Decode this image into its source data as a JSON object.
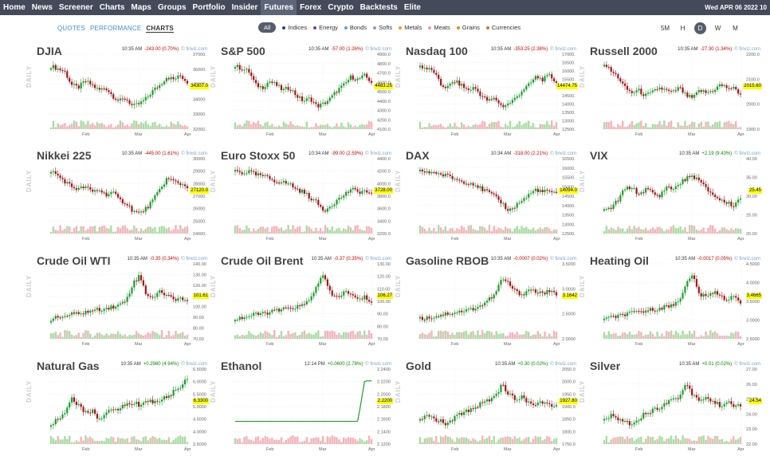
{
  "nav": {
    "items": [
      "Home",
      "News",
      "Screener",
      "Charts",
      "Maps",
      "Groups",
      "Portfolio",
      "Insider",
      "Futures",
      "Forex",
      "Crypto",
      "Backtests",
      "Elite"
    ],
    "active": "Futures",
    "date": "Wed APR 06 2022 10"
  },
  "tabs": {
    "quotes": "QUOTES",
    "performance": "PERFORMANCE",
    "charts": "CHARTS"
  },
  "filters": [
    {
      "label": "All"
    },
    {
      "label": "Indices",
      "color": "#2a3d9a"
    },
    {
      "label": "Energy",
      "color": "#6a3fb3"
    },
    {
      "label": "Bonds",
      "color": "#59a5dc"
    },
    {
      "label": "Softs",
      "color": "#8a9db8"
    },
    {
      "label": "Metals",
      "color": "#e0a81c"
    },
    {
      "label": "Meats",
      "color": "#e59bbd"
    },
    {
      "label": "Grains",
      "color": "#c8962d"
    },
    {
      "label": "Currencies",
      "color": "#c67f2b"
    }
  ],
  "timeframes": [
    "5M",
    "H",
    "D",
    "W",
    "M"
  ],
  "colors": {
    "up": "#1a9e2a",
    "down": "#a01818",
    "vol_up": "#a9dca4",
    "vol_down": "#f3b4b9",
    "price_tag": "#ffff00"
  },
  "charts": [
    {
      "name": "DJIA",
      "time": "10:35 AM",
      "change": "-243.00 (0.70%)",
      "dir": "neg",
      "source": "© finviz.com",
      "price": "34307.0",
      "yticks": [
        "37000.0",
        "36000.0",
        "35000.0",
        "34000.0",
        "33000.0",
        "32000.0"
      ],
      "months": [
        "Feb",
        "Mar",
        "Apr"
      ],
      "shape": "djia"
    },
    {
      "name": "S&P 500",
      "time": "10:35 AM",
      "change": "-57.00 (1.26%)",
      "dir": "neg",
      "source": "© finviz.com",
      "price": "4483.25",
      "yticks": [
        "4900.00",
        "4800.00",
        "4700.00",
        "4600.00",
        "4500.00",
        "4400.00",
        "4300.00",
        "4200.00",
        "4100.00"
      ],
      "months": [
        "Feb",
        "Mar",
        "Apr"
      ],
      "shape": "djia"
    },
    {
      "name": "Nasdaq 100",
      "time": "10:35 AM",
      "change": "-353.25 (2.38%)",
      "dir": "neg",
      "source": "© finviz.com",
      "price": "14474.75",
      "yticks": [
        "17000.0",
        "16500.0",
        "16000.0",
        "15500.0",
        "15000.0",
        "14500.0",
        "14000.0",
        "13500.0",
        "13000.0",
        "12500.0"
      ],
      "months": [
        "Feb",
        "Mar",
        "Apr"
      ],
      "shape": "djia"
    },
    {
      "name": "Russell 2000",
      "time": "10:35 AM",
      "change": "-27.30 (1.34%)",
      "dir": "neg",
      "source": "© finviz.com",
      "price": "2015.60",
      "yticks": [
        "2200.00",
        "2100.00",
        "2000.00",
        "1900.00"
      ],
      "months": [
        "Feb",
        "Mar",
        "Apr"
      ],
      "shape": "russell"
    },
    {
      "name": "Nikkei 225",
      "time": "10:35 AM",
      "change": "-445.00 (1.61%)",
      "dir": "neg",
      "source": "© finviz.com",
      "price": "27120.0",
      "yticks": [
        "30000.0",
        "29000.0",
        "28000.0",
        "27000.0",
        "26000.0",
        "25000.0",
        "24000.0"
      ],
      "months": [
        "Feb",
        "Mar",
        "Apr"
      ],
      "shape": "nikkei"
    },
    {
      "name": "Euro Stoxx 50",
      "time": "10:34 AM",
      "change": "-99.00 (2.59%)",
      "dir": "neg",
      "source": "© finviz.com",
      "price": "3728.00",
      "yticks": [
        "4400.00",
        "4200.00",
        "4000.00",
        "3800.00",
        "3600.00",
        "3400.00",
        "3200.00"
      ],
      "months": [
        "Feb",
        "Mar",
        "Apr"
      ],
      "shape": "euro"
    },
    {
      "name": "DAX",
      "time": "10:34 AM",
      "change": "-318.00 (2.21%)",
      "dir": "neg",
      "source": "© finviz.com",
      "price": "14094.0",
      "yticks": [
        "16500.0",
        "16000.0",
        "15500.0",
        "15000.0",
        "14500.0",
        "14000.0",
        "13500.0",
        "13000.0",
        "12500.0"
      ],
      "months": [
        "Feb",
        "Mar",
        "Apr"
      ],
      "shape": "euro"
    },
    {
      "name": "VIX",
      "time": "10:35 AM",
      "change": "+2.19 (9.43%)",
      "dir": "pos",
      "source": "© finviz.com",
      "price": "25.45",
      "yticks": [
        "40.00",
        "35.00",
        "30.00",
        "25.00",
        "20.00"
      ],
      "months": [
        "Feb",
        "Mar",
        "Apr"
      ],
      "shape": "vix"
    },
    {
      "name": "Crude Oil WTI",
      "time": "10:35 AM",
      "change": "-0.35 (0.34%)",
      "dir": "neg",
      "source": "© finviz.com",
      "price": "101.61",
      "yticks": [
        "140.00",
        "130.00",
        "120.00",
        "110.00",
        "100.00",
        "90.00",
        "80.00",
        "70.00"
      ],
      "months": [
        "Feb",
        "Mar",
        "Apr"
      ],
      "shape": "oil"
    },
    {
      "name": "Crude Oil Brent",
      "time": "10:35 AM",
      "change": "-0.37 (0.35%)",
      "dir": "neg",
      "source": "© finviz.com",
      "price": "106.27",
      "yticks": [
        "130.00",
        "120.00",
        "110.00",
        "100.00",
        "90.00",
        "80.00",
        "70.00"
      ],
      "months": [
        "Feb",
        "Mar",
        "Apr"
      ],
      "shape": "oil"
    },
    {
      "name": "Gasoline RBOB",
      "time": "10:35 AM",
      "change": "-0.0007 (0.02%)",
      "dir": "neg",
      "source": "© finviz.com",
      "price": "3.1642",
      "yticks": [
        "3.5000",
        "3.0000",
        "2.5000",
        "2.0000"
      ],
      "months": [
        "Feb",
        "Mar",
        "Apr"
      ],
      "shape": "gas"
    },
    {
      "name": "Heating Oil",
      "time": "10:35 AM",
      "change": "-0.0017 (0.05%)",
      "dir": "neg",
      "source": "© finviz.com",
      "price": "3.4665",
      "yticks": [
        "4.5000",
        "4.0000",
        "3.5000",
        "3.0000",
        "2.5000"
      ],
      "months": [
        "Feb",
        "Mar",
        "Apr"
      ],
      "shape": "oil"
    },
    {
      "name": "Natural Gas",
      "time": "10:35 AM",
      "change": "+0.2980 (4.94%)",
      "dir": "pos",
      "source": "© finviz.com",
      "price": "6.3300",
      "yticks": [
        "6.5000",
        "6.0000",
        "5.5000",
        "5.0000",
        "4.5000",
        "4.0000",
        "3.5000"
      ],
      "months": [
        "Feb",
        "Mar",
        "Apr"
      ],
      "shape": "natgas"
    },
    {
      "name": "Ethanol",
      "time": "12:14 PM",
      "change": "+0.0600 (2.78%)",
      "dir": "pos",
      "source": "© finviz.com",
      "price": "2.2200",
      "yticks": [
        "2.2400",
        "2.2200",
        "2.2000",
        "2.1800",
        "2.1600",
        "2.1400",
        "2.1200"
      ],
      "months": [
        "Feb",
        "Mar",
        "Apr"
      ],
      "shape": "ethanol"
    },
    {
      "name": "Gold",
      "time": "10:35 AM",
      "change": "+0.30 (0.02%)",
      "dir": "pos",
      "source": "© finviz.com",
      "price": "1927.80",
      "yticks": [
        "2050.00",
        "2000.00",
        "1950.00",
        "1900.00",
        "1850.00",
        "1800.00",
        "1750.00"
      ],
      "months": [
        "Feb",
        "Mar",
        "Apr"
      ],
      "shape": "gold"
    },
    {
      "name": "Silver",
      "time": "10:35 AM",
      "change": "+0.01 (0.02%)",
      "dir": "pos",
      "source": "© finviz.com",
      "price": "24.54",
      "yticks": [
        "27.00",
        "26.00",
        "25.00",
        "24.00",
        "23.00",
        "22.00"
      ],
      "months": [
        "Feb",
        "Mar",
        "Apr"
      ],
      "shape": "gold"
    }
  ]
}
